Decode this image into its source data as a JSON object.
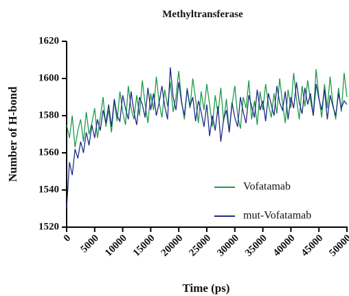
{
  "chart_data": {
    "type": "line",
    "title": "Methyltransferase",
    "xlabel": "Time (ps)",
    "ylabel": "Number of H-bond",
    "x": [
      0,
      500,
      1000,
      1500,
      2000,
      2500,
      3000,
      3500,
      4000,
      4500,
      5000,
      5500,
      6000,
      6500,
      7000,
      7500,
      8000,
      8500,
      9000,
      9500,
      10000,
      10500,
      11000,
      11500,
      12000,
      12500,
      13000,
      13500,
      14000,
      14500,
      15000,
      15500,
      16000,
      16500,
      17000,
      17500,
      18000,
      18500,
      19000,
      19500,
      20000,
      20500,
      21000,
      21500,
      22000,
      22500,
      23000,
      23500,
      24000,
      24500,
      25000,
      25500,
      26000,
      26500,
      27000,
      27500,
      28000,
      28500,
      29000,
      29500,
      30000,
      30500,
      31000,
      31500,
      32000,
      32500,
      33000,
      33500,
      34000,
      34500,
      35000,
      35500,
      36000,
      36500,
      37000,
      37500,
      38000,
      38500,
      39000,
      39500,
      40000,
      40500,
      41000,
      41500,
      42000,
      42500,
      43000,
      43500,
      44000,
      44500,
      45000,
      45500,
      46000,
      46500,
      47000,
      47500,
      48000,
      48500,
      49000,
      49500,
      50000
    ],
    "series": [
      {
        "name": "Vofatamab",
        "color": "#1e9a48",
        "values": [
          1575,
          1568,
          1580,
          1563,
          1572,
          1578,
          1566,
          1582,
          1570,
          1576,
          1584,
          1568,
          1579,
          1590,
          1574,
          1583,
          1571,
          1588,
          1577,
          1593,
          1582,
          1575,
          1596,
          1584,
          1578,
          1591,
          1580,
          1599,
          1586,
          1576,
          1592,
          1583,
          1601,
          1587,
          1579,
          1594,
          1585,
          1598,
          1582,
          1590,
          1604,
          1588,
          1578,
          1595,
          1584,
          1600,
          1589,
          1576,
          1593,
          1583,
          1597,
          1586,
          1574,
          1591,
          1581,
          1595,
          1577,
          1589,
          1571,
          1586,
          1596,
          1580,
          1573,
          1590,
          1584,
          1599,
          1578,
          1588,
          1575,
          1593,
          1583,
          1597,
          1586,
          1579,
          1592,
          1581,
          1600,
          1587,
          1576,
          1594,
          1584,
          1603,
          1589,
          1578,
          1596,
          1585,
          1599,
          1588,
          1580,
          1605,
          1590,
          1579,
          1597,
          1584,
          1601,
          1586,
          1578,
          1595,
          1582,
          1603,
          1590
        ]
      },
      {
        "name": "mut-Vofatamab",
        "color": "#1f2a86",
        "values": [
          1530,
          1555,
          1548,
          1562,
          1557,
          1566,
          1560,
          1571,
          1564,
          1575,
          1568,
          1578,
          1572,
          1583,
          1576,
          1586,
          1574,
          1589,
          1580,
          1577,
          1591,
          1584,
          1578,
          1593,
          1582,
          1575,
          1590,
          1586,
          1579,
          1595,
          1583,
          1592,
          1580,
          1587,
          1596,
          1585,
          1578,
          1606,
          1590,
          1583,
          1598,
          1587,
          1580,
          1594,
          1585,
          1590,
          1577,
          1588,
          1582,
          1574,
          1586,
          1569,
          1580,
          1572,
          1585,
          1566,
          1578,
          1583,
          1571,
          1587,
          1579,
          1574,
          1590,
          1582,
          1576,
          1591,
          1585,
          1579,
          1594,
          1583,
          1588,
          1577,
          1592,
          1586,
          1580,
          1596,
          1587,
          1583,
          1593,
          1578,
          1590,
          1584,
          1598,
          1587,
          1581,
          1595,
          1586,
          1592,
          1580,
          1597,
          1589,
          1583,
          1594,
          1578,
          1591,
          1585,
          1580,
          1592,
          1584,
          1588,
          1586
        ]
      }
    ],
    "xlim": [
      0,
      50000
    ],
    "xticks": [
      0,
      5000,
      10000,
      15000,
      20000,
      25000,
      30000,
      35000,
      40000,
      45000,
      50000
    ],
    "ylim": [
      1520,
      1620
    ],
    "yticks": [
      1520,
      1540,
      1560,
      1580,
      1600,
      1620
    ],
    "legend": "lower right",
    "grid": false
  }
}
